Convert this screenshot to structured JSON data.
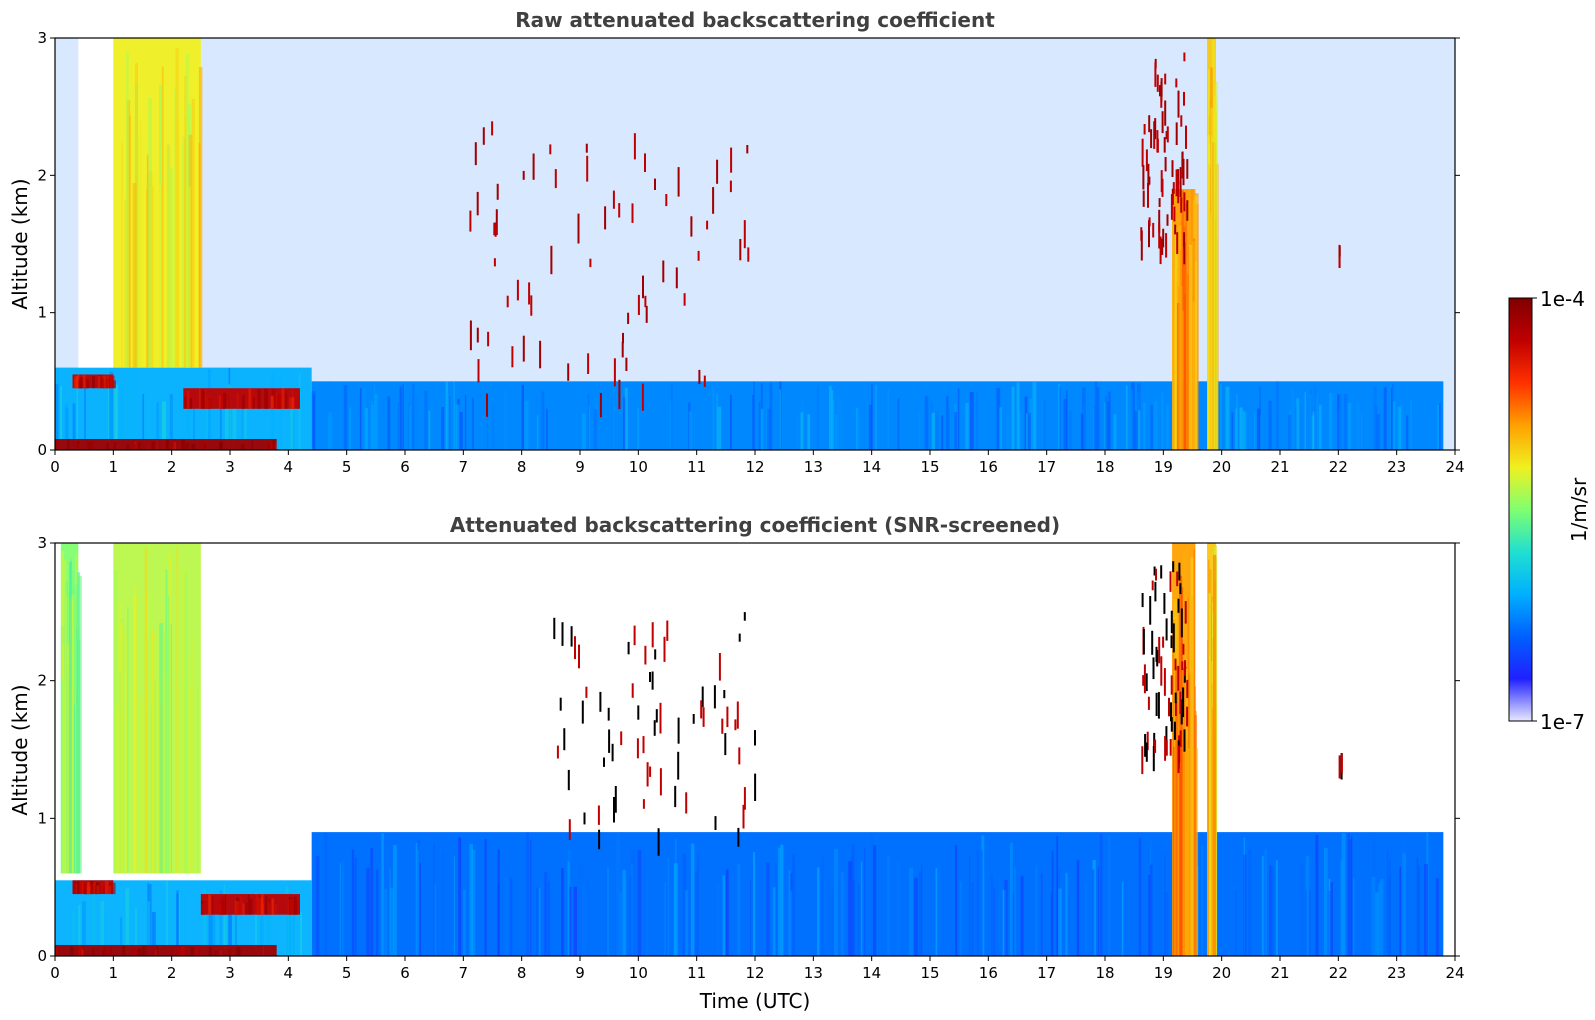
{
  "chart_data": [
    {
      "type": "heatmap",
      "title": "Raw attenuated backscattering coefficient",
      "xlabel": "",
      "ylabel": "Altitude (km)",
      "xlim": [
        0,
        24
      ],
      "ylim": [
        0,
        3
      ],
      "x_ticks": [
        "0",
        "1",
        "2",
        "3",
        "4",
        "5",
        "6",
        "7",
        "8",
        "9",
        "10",
        "11",
        "12",
        "13",
        "14",
        "15",
        "16",
        "17",
        "18",
        "19",
        "20",
        "21",
        "22",
        "23",
        "24"
      ],
      "y_ticks": [
        "0",
        "1",
        "2",
        "3"
      ],
      "features": [
        {
          "kind": "surface_layer",
          "x": [
            4.4,
            23.8
          ],
          "y": [
            0,
            0.5
          ],
          "level": 0.25
        },
        {
          "kind": "aerosol_layer",
          "x": [
            0,
            4.4
          ],
          "y": [
            0,
            0.6
          ],
          "level": 0.3
        },
        {
          "kind": "strong_layer",
          "x": [
            0.0,
            3.8
          ],
          "y": [
            0.0,
            0.08
          ],
          "level": 0.95
        },
        {
          "kind": "strong_layer",
          "x": [
            2.2,
            4.2
          ],
          "y": [
            0.3,
            0.45
          ],
          "level": 0.9
        },
        {
          "kind": "strong_layer",
          "x": [
            0.3,
            1.0
          ],
          "y": [
            0.45,
            0.55
          ],
          "level": 0.9
        },
        {
          "kind": "clear_column",
          "x": [
            0.4,
            1.0
          ],
          "y": [
            0.6,
            3.0
          ]
        },
        {
          "kind": "rain_column",
          "x": [
            1.0,
            2.5
          ],
          "y": [
            0.6,
            3.0
          ],
          "level": 0.6
        },
        {
          "kind": "fog_column",
          "x": [
            19.15,
            19.55
          ],
          "y": [
            0.0,
            1.9
          ],
          "level": 0.7
        },
        {
          "kind": "fog_column",
          "x": [
            19.75,
            19.9
          ],
          "y": [
            0.0,
            3.0
          ],
          "level": 0.65
        },
        {
          "kind": "cloud_points",
          "x": [
            7.0,
            12.0
          ],
          "y": [
            0.4,
            2.4
          ]
        },
        {
          "kind": "cloud_points",
          "x": [
            18.6,
            19.4
          ],
          "y": [
            1.5,
            2.9
          ]
        },
        {
          "kind": "cloud_point",
          "x": [
            22.0,
            22.05
          ],
          "y": [
            1.45,
            1.55
          ]
        }
      ]
    },
    {
      "type": "heatmap",
      "title": "Attenuated backscattering coefficient (SNR-screened)",
      "xlabel": "Time (UTC)",
      "ylabel": "Altitude (km)",
      "xlim": [
        0,
        24
      ],
      "ylim": [
        0,
        3
      ],
      "x_ticks": [
        "0",
        "1",
        "2",
        "3",
        "4",
        "5",
        "6",
        "7",
        "8",
        "9",
        "10",
        "11",
        "12",
        "13",
        "14",
        "15",
        "16",
        "17",
        "18",
        "19",
        "20",
        "21",
        "22",
        "23",
        "24"
      ],
      "y_ticks": [
        "0",
        "1",
        "2",
        "3"
      ],
      "features": [
        {
          "kind": "surface_layer",
          "x": [
            4.4,
            23.8
          ],
          "y": [
            0,
            0.9
          ],
          "level": 0.22
        },
        {
          "kind": "aerosol_layer",
          "x": [
            0,
            4.4
          ],
          "y": [
            0,
            0.55
          ],
          "level": 0.3
        },
        {
          "kind": "strong_layer",
          "x": [
            0.0,
            3.8
          ],
          "y": [
            0.0,
            0.08
          ],
          "level": 0.95
        },
        {
          "kind": "strong_layer",
          "x": [
            2.5,
            4.2
          ],
          "y": [
            0.3,
            0.45
          ],
          "level": 0.9
        },
        {
          "kind": "strong_layer",
          "x": [
            0.3,
            1.0
          ],
          "y": [
            0.45,
            0.55
          ],
          "level": 0.9
        },
        {
          "kind": "rain_column",
          "x": [
            0.1,
            0.4
          ],
          "y": [
            0.6,
            3.0
          ],
          "level": 0.5
        },
        {
          "kind": "rain_column",
          "x": [
            1.0,
            2.5
          ],
          "y": [
            0.6,
            3.0
          ],
          "level": 0.55
        },
        {
          "kind": "fog_column",
          "x": [
            19.15,
            19.55
          ],
          "y": [
            0.0,
            3.0
          ],
          "level": 0.7
        },
        {
          "kind": "fog_column",
          "x": [
            19.75,
            19.9
          ],
          "y": [
            0.0,
            3.0
          ],
          "level": 0.65
        },
        {
          "kind": "cloud_points",
          "x": [
            8.5,
            12.0
          ],
          "y": [
            0.9,
            2.5
          ]
        },
        {
          "kind": "cloud_points",
          "x": [
            18.6,
            19.4
          ],
          "y": [
            1.5,
            2.9
          ]
        },
        {
          "kind": "cloud_point",
          "x": [
            22.0,
            22.05
          ],
          "y": [
            1.45,
            1.55
          ]
        }
      ]
    }
  ],
  "colorbar": {
    "label": "1/m/sr",
    "max_label": "1e-4",
    "min_label": "1e-7",
    "scale": "log",
    "range": [
      1e-07,
      0.0001
    ],
    "colormap": [
      "#e8e8ff",
      "#2020ff",
      "#0060ff",
      "#00b0ff",
      "#20e0d0",
      "#80ff70",
      "#f0f020",
      "#ffa000",
      "#ff3000",
      "#c00000",
      "#800000"
    ]
  }
}
